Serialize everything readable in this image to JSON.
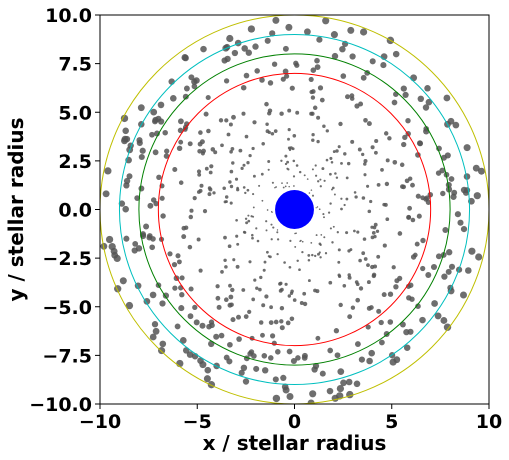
{
  "chart_data": {
    "type": "scatter",
    "title": "",
    "xlabel": "x / stellar radius",
    "ylabel": "y / stellar radius",
    "xlim": [
      -10,
      10
    ],
    "ylim": [
      -10,
      10
    ],
    "xticks": [
      -10,
      -5,
      0,
      5,
      10
    ],
    "yticks": [
      -10.0,
      -7.5,
      -5.0,
      -2.5,
      0.0,
      2.5,
      5.0,
      7.5,
      10.0
    ],
    "xtick_labels": [
      "−10",
      "−5",
      "0",
      "5",
      "10"
    ],
    "ytick_labels": [
      "−10.0",
      "−7.5",
      "−5.0",
      "−2.5",
      "0.0",
      "2.5",
      "5.0",
      "7.5",
      "10.0"
    ],
    "grid": false,
    "star": {
      "center": [
        0,
        0
      ],
      "radius": 1.0,
      "color": "#0000ff"
    },
    "circles": [
      {
        "radius": 7,
        "color": "#ff0000"
      },
      {
        "radius": 8,
        "color": "#008000"
      },
      {
        "radius": 9,
        "color": "#00bfbf"
      },
      {
        "radius": 10,
        "color": "#bfbf00"
      }
    ],
    "particles": {
      "color": "#555555",
      "count": 700,
      "r_min": 1.1,
      "r_max": 10,
      "distribution": "size grows with radius; density roughly uniform in radius"
    }
  }
}
